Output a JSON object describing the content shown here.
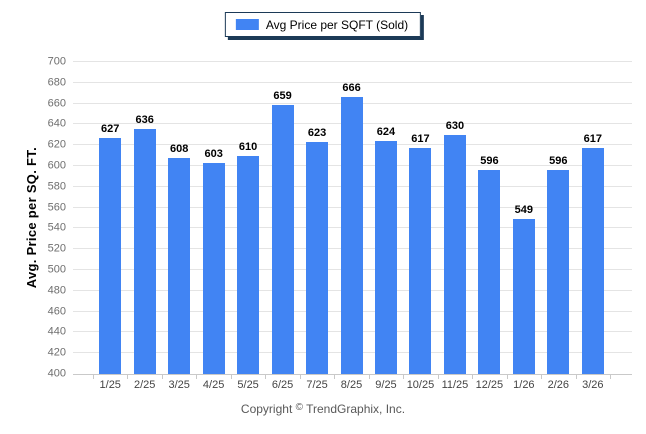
{
  "chart_data": {
    "type": "bar",
    "title": "",
    "series_name": "Avg Price per SQFT (Sold)",
    "categories": [
      "1/25",
      "2/25",
      "3/25",
      "4/25",
      "5/25",
      "6/25",
      "7/25",
      "8/25",
      "9/25",
      "10/25",
      "11/25",
      "12/25",
      "1/26",
      "2/26",
      "3/26"
    ],
    "values": [
      627,
      636,
      608,
      603,
      610,
      659,
      623,
      666,
      624,
      617,
      630,
      596,
      549,
      596,
      617
    ],
    "xlabel": "",
    "ylabel": "Avg. Price per SQ. FT.",
    "ylim": [
      400,
      700
    ],
    "ytick_step": 20,
    "grid": true,
    "legend_position": "top-center",
    "bar_color": "#4184f3"
  },
  "footer": {
    "copyright_prefix": "Copyright",
    "copyright_symbol": "©",
    "copyright_suffix": "TrendGraphix, Inc."
  },
  "colors": {
    "bar": "#4184f3",
    "gridline": "#e4e4e4",
    "axis_line": "#c9c9c9",
    "y_tick_label": "#6e6e6e",
    "x_tick_label": "#444444",
    "value_label": "#000000",
    "legend_border": "#1c3a57",
    "background": "#ffffff"
  }
}
